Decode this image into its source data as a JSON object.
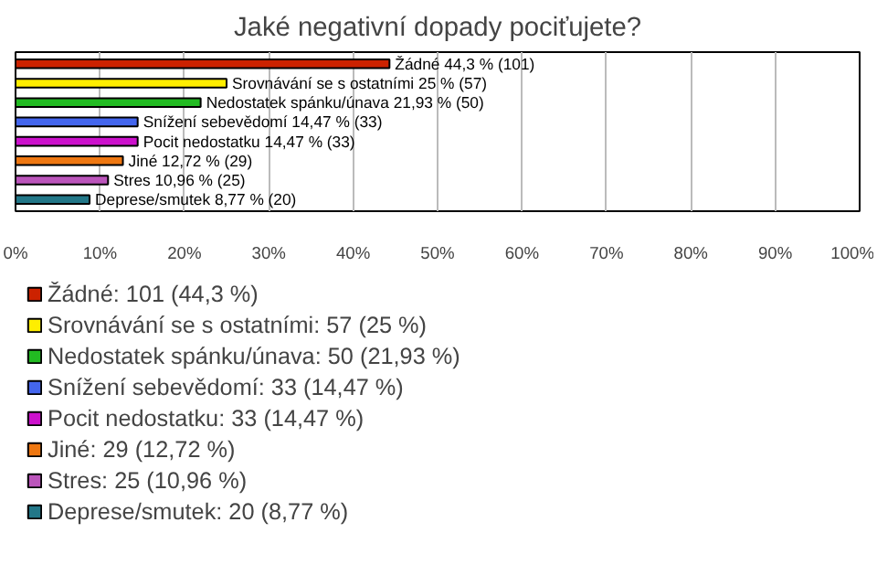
{
  "chart_data": {
    "type": "bar",
    "orientation": "horizontal",
    "stacked": true,
    "title": "Jaké negativní dopady pociťujete?",
    "categories": [
      null,
      null,
      null,
      null,
      null,
      null,
      null,
      null
    ],
    "series": [
      {
        "name": "Žádné: 101 (44,3 %)",
        "color": "#cc2200",
        "values": [
          44.3,
          null,
          null,
          null,
          null,
          null,
          null,
          null
        ],
        "value_labels": [
          "Žádné 44,3 % (101)",
          null,
          null,
          null,
          null,
          null,
          null,
          null
        ]
      },
      {
        "name": "Srovnávání se s ostatními: 57 (25 %)",
        "color": "#ffee00",
        "values": [
          null,
          25,
          null,
          null,
          null,
          null,
          null,
          null
        ],
        "value_labels": [
          null,
          "Srovnávání se s ostatními 25 % (57)",
          null,
          null,
          null,
          null,
          null,
          null
        ]
      },
      {
        "name": "Nedostatek spánku/únava: 50 (21,93 %)",
        "color": "#22bb22",
        "values": [
          null,
          null,
          21.93,
          null,
          null,
          null,
          null,
          null
        ],
        "value_labels": [
          null,
          null,
          "Nedostatek spánku/únava 21,93 % (50)",
          null,
          null,
          null,
          null,
          null
        ]
      },
      {
        "name": "Snížení sebevědomí: 33 (14,47 %)",
        "color": "#4466ee",
        "values": [
          null,
          null,
          null,
          14.47,
          null,
          null,
          null,
          null
        ],
        "value_labels": [
          null,
          null,
          null,
          "Snížení sebevědomí 14,47 % (33)",
          null,
          null,
          null,
          null
        ]
      },
      {
        "name": "Pocit nedostatku: 33 (14,47 %)",
        "color": "#cc11cc",
        "values": [
          null,
          null,
          null,
          null,
          14.47,
          null,
          null,
          null
        ],
        "value_labels": [
          null,
          null,
          null,
          null,
          "Pocit nedostatku 14,47 % (33)",
          null,
          null,
          null
        ]
      },
      {
        "name": "Jiné: 29 (12,72 %)",
        "color": "#ee7711",
        "values": [
          null,
          null,
          null,
          null,
          null,
          12.72,
          null,
          null
        ],
        "value_labels": [
          null,
          null,
          null,
          null,
          null,
          "Jiné 12,72 % (29)",
          null,
          null
        ]
      },
      {
        "name": "Stres: 25 (10,96 %)",
        "color": "#bb55bb",
        "values": [
          null,
          null,
          null,
          null,
          null,
          null,
          10.96,
          null
        ],
        "value_labels": [
          null,
          null,
          null,
          null,
          null,
          null,
          "Stres 10,96 % (25)",
          null
        ]
      },
      {
        "name": "Deprese/smutek: 20 (8,77 %)",
        "color": "#227788",
        "values": [
          null,
          null,
          null,
          null,
          null,
          null,
          null,
          8.77
        ],
        "value_labels": [
          null,
          null,
          null,
          null,
          null,
          null,
          null,
          "Deprese/smutek 8,77 % (20)"
        ]
      }
    ],
    "xlim": [
      0,
      100
    ],
    "xticks": [
      {
        "value": 0,
        "label": "0%"
      },
      {
        "value": 10,
        "label": "10%"
      },
      {
        "value": 20,
        "label": "20%"
      },
      {
        "value": 30,
        "label": "30%"
      },
      {
        "value": 40,
        "label": "40%"
      },
      {
        "value": 50,
        "label": "50%"
      },
      {
        "value": 60,
        "label": "60%"
      },
      {
        "value": 70,
        "label": "70%"
      },
      {
        "value": 80,
        "label": "80%"
      },
      {
        "value": 90,
        "label": "90%"
      },
      {
        "value": 100,
        "label": "100%"
      }
    ],
    "grid": "x",
    "legend": "bottom",
    "tick_labels": "x"
  }
}
